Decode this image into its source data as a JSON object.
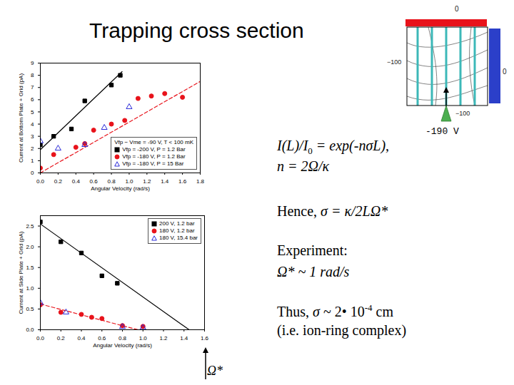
{
  "chart_data": [
    {
      "type": "scatter",
      "x_label": "Angular Velocity (rad/s)",
      "y_label": "Current at Bottom Plate + Grid (pA)",
      "xlim": [
        0,
        1.8
      ],
      "xticks": [
        {
          "value": 0,
          "label": "0.0"
        },
        {
          "value": 0.2,
          "label": "0.2"
        },
        {
          "value": 0.4,
          "label": "0.4"
        },
        {
          "value": 0.6,
          "label": "0.6"
        },
        {
          "value": 0.8,
          "label": "0.8"
        },
        {
          "value": 1.0,
          "label": "1.0"
        },
        {
          "value": 1.2,
          "label": "1.2"
        },
        {
          "value": 1.4,
          "label": "1.4"
        },
        {
          "value": 1.6,
          "label": "1.6"
        },
        {
          "value": 1.8,
          "label": "1.8"
        }
      ],
      "ylim": [
        0,
        9
      ],
      "yticks": [
        0,
        1,
        2,
        3,
        4,
        5,
        6,
        7,
        8,
        9
      ],
      "grid": false,
      "legend": "lower right",
      "legend_title": "Vfp − Vme = -90 V, T < 100 mK",
      "series": [
        {
          "name": "Vfp = -200 V, P = 1.2 Bar",
          "color": "#000000",
          "marker": "square",
          "x": [
            0,
            0.15,
            0.35,
            0.5,
            0.8,
            0.9
          ],
          "values": [
            2.3,
            3.0,
            3.6,
            5.9,
            7.2,
            8.0
          ]
        },
        {
          "name": "Vfp = -180 V, P = 1.2 Bar",
          "color": "#e8131b",
          "marker": "circle",
          "x": [
            0,
            0.15,
            0.4,
            0.5,
            0.6,
            0.8,
            0.95,
            1.1,
            1.25,
            1.4,
            1.6
          ],
          "values": [
            0.4,
            1.5,
            2.1,
            2.4,
            3.5,
            4.0,
            4.3,
            6.1,
            6.3,
            6.5,
            6.2
          ]
        },
        {
          "name": "Vfp = -180 V, P = 15 Bar",
          "color": "#2b2bd9",
          "marker": "open-triangle",
          "x": [
            0,
            0.2,
            0.5,
            0.72,
            1.0
          ],
          "values": [
            2.6,
            2.0,
            2.3,
            3.7,
            5.4
          ]
        }
      ],
      "fit_lines": [
        {
          "color": "#000000",
          "line_style": "solid",
          "x": [
            0,
            0.92
          ],
          "values": [
            1.9,
            8.3
          ]
        },
        {
          "color": "#e8131b",
          "line_style": "dashed",
          "x": [
            0,
            1.8
          ],
          "values": [
            0,
            7.5
          ]
        }
      ]
    },
    {
      "type": "scatter",
      "x_label": "Angular Velocity (rad/s)",
      "y_label": "Current at Side Plate + Grid (pA)",
      "xlim": [
        0,
        1.6
      ],
      "xticks": [
        {
          "value": 0,
          "label": "0.0"
        },
        {
          "value": 0.2,
          "label": "0.2"
        },
        {
          "value": 0.4,
          "label": "0.4"
        },
        {
          "value": 0.6,
          "label": "0.6"
        },
        {
          "value": 0.8,
          "label": "0.8"
        },
        {
          "value": 1.0,
          "label": "1.0"
        },
        {
          "value": 1.2,
          "label": "1.2"
        },
        {
          "value": 1.4,
          "label": "1.4"
        },
        {
          "value": 1.6,
          "label": "1.6"
        }
      ],
      "ylim": [
        0,
        2.75
      ],
      "yticks": [
        {
          "value": 0,
          "label": "0.0"
        },
        {
          "value": 0.5,
          "label": "0.5"
        },
        {
          "value": 1.0,
          "label": "1.0"
        },
        {
          "value": 1.5,
          "label": "1.5"
        },
        {
          "value": 2.0,
          "label": "2.0"
        },
        {
          "value": 2.5,
          "label": "2.5"
        }
      ],
      "grid": false,
      "legend": "upper right",
      "series": [
        {
          "name": "200 V, 1.2 bar",
          "color": "#000000",
          "marker": "square",
          "x": [
            0,
            0.2,
            0.4,
            0.6,
            0.75
          ],
          "values": [
            2.6,
            2.12,
            1.85,
            1.3,
            1.12
          ]
        },
        {
          "name": "180 V, 1.2 bar",
          "color": "#e8131b",
          "marker": "circle",
          "x": [
            0,
            0.2,
            0.4,
            0.5,
            0.6,
            0.8,
            1.0
          ],
          "values": [
            0.6,
            0.42,
            0.37,
            0.3,
            0.27,
            0.1,
            0.08
          ]
        },
        {
          "name": "180 V, 15.4 bar",
          "color": "#2b2bd9",
          "marker": "open-triangle",
          "x": [
            0,
            0.25,
            0.8,
            1.0
          ],
          "values": [
            0.65,
            0.42,
            0.07,
            0.05
          ]
        }
      ],
      "fit_lines": [
        {
          "color": "#000000",
          "line_style": "solid",
          "x": [
            0,
            1.45
          ],
          "values": [
            2.55,
            0
          ]
        },
        {
          "color": "#e8131b",
          "line_style": "dashed",
          "x": [
            0,
            0.95
          ],
          "values": [
            0.62,
            0
          ]
        }
      ]
    }
  ],
  "slide": {
    "title": "Trapping cross section",
    "equations": [
      [
        {
          "text": "I(L)/I",
          "style": "italic"
        },
        {
          "text": "0",
          "style": "sub"
        },
        {
          "text": " = exp(-nσL),",
          "style": "italic"
        }
      ],
      [
        {
          "text": "n = 2Ω/κ",
          "style": "italic"
        }
      ],
      [
        {
          "text": "Hence, ",
          "style": "plain"
        },
        {
          "text": "σ = κ/2LΩ*",
          "style": "italic"
        }
      ],
      [
        {
          "text": "Experiment:",
          "style": "plain"
        }
      ],
      [
        {
          "text": "Ω* ~ 1 rad/s",
          "style": "italic"
        }
      ],
      [
        {
          "text": "Thus, ",
          "style": "plain"
        },
        {
          "text": "σ",
          "style": "italic"
        },
        {
          "text": " ~ 2• 10",
          "style": "plain"
        },
        {
          "text": "-4",
          "style": "sup"
        },
        {
          "text": " cm",
          "style": "plain"
        }
      ],
      [
        {
          "text": "(i.e. ion-ring complex)",
          "style": "plain"
        }
      ]
    ],
    "annotation": "Ω*",
    "diagram": {
      "labels": [
        "0",
        "−100",
        "0",
        "−100"
      ],
      "voltage": "-190 V"
    }
  }
}
